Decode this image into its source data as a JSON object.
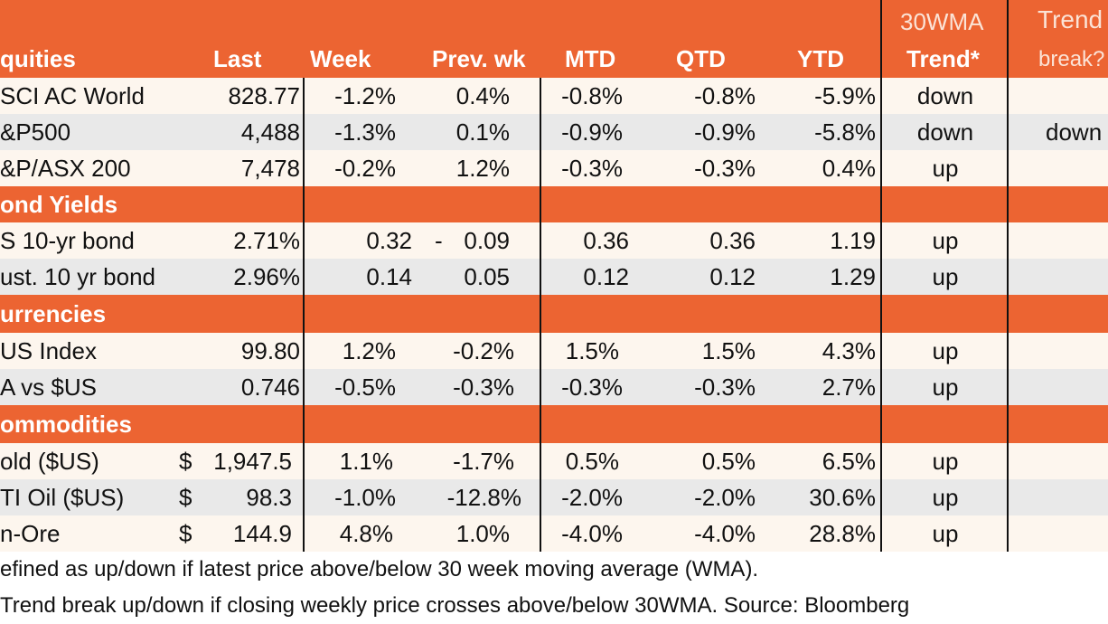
{
  "headers": {
    "name": "quities",
    "last": "Last",
    "week": "Week",
    "prev_wk": "Prev. wk",
    "mtd": "MTD",
    "qtd": "QTD",
    "ytd": "YTD",
    "wma_line1": "30WMA",
    "wma_line2": "Trend*",
    "break_line1": "Trend",
    "break_line2": "break?"
  },
  "sections": {
    "bond": "ond Yields",
    "curr": "urrencies",
    "comm": "ommodities"
  },
  "rows": [
    {
      "name": "SCI AC World",
      "dollar": "",
      "last": "828.77",
      "week": "-1.2%",
      "prev": "0.4%",
      "dash": "",
      "mtd": "-0.8%",
      "qtd": "-0.8%",
      "ytd": "-5.9%",
      "trend": "down",
      "brk": ""
    },
    {
      "name": "&P500",
      "dollar": "",
      "last": "4,488",
      "week": "-1.3%",
      "prev": "0.1%",
      "dash": "",
      "mtd": "-0.9%",
      "qtd": "-0.9%",
      "ytd": "-5.8%",
      "trend": "down",
      "brk": "down"
    },
    {
      "name": "&P/ASX 200",
      "dollar": "",
      "last": "7,478",
      "week": "-0.2%",
      "prev": "1.2%",
      "dash": "",
      "mtd": "-0.3%",
      "qtd": "-0.3%",
      "ytd": "0.4%",
      "trend": "up",
      "brk": ""
    },
    {
      "name": "S 10-yr bond",
      "dollar": "",
      "last": "2.71%",
      "week": "0.32",
      "prev": "0.09",
      "dash": "-",
      "mtd": "0.36",
      "qtd": "0.36",
      "ytd": "1.19",
      "trend": "up",
      "brk": ""
    },
    {
      "name": "ust. 10 yr bond",
      "dollar": "",
      "last": "2.96%",
      "week": "0.14",
      "prev": "0.05",
      "dash": "",
      "mtd": "0.12",
      "qtd": "0.12",
      "ytd": "1.29",
      "trend": "up",
      "brk": ""
    },
    {
      "name": "US Index",
      "dollar": "",
      "last": "99.80",
      "week": "1.2%",
      "prev": "-0.2%",
      "dash": "",
      "mtd": "1.5%",
      "qtd": "1.5%",
      "ytd": "4.3%",
      "trend": "up",
      "brk": ""
    },
    {
      "name": "A vs $US",
      "dollar": "",
      "last": "0.746",
      "week": "-0.5%",
      "prev": "-0.3%",
      "dash": "",
      "mtd": "-0.3%",
      "qtd": "-0.3%",
      "ytd": "2.7%",
      "trend": "up",
      "brk": ""
    },
    {
      "name": "old ($US)",
      "dollar": "$",
      "last": "1,947.5",
      "week": "1.1%",
      "prev": "-1.7%",
      "dash": "",
      "mtd": "0.5%",
      "qtd": "0.5%",
      "ytd": "6.5%",
      "trend": "up",
      "brk": ""
    },
    {
      "name": "TI Oil ($US)",
      "dollar": "$",
      "last": "98.3",
      "week": "-1.0%",
      "prev": "-12.8%",
      "dash": "",
      "mtd": "-2.0%",
      "qtd": "-2.0%",
      "ytd": "30.6%",
      "trend": "up",
      "brk": ""
    },
    {
      "name": "n-Ore",
      "dollar": "$",
      "last": "144.9",
      "week": "4.8%",
      "prev": "1.0%",
      "dash": "",
      "mtd": "-4.0%",
      "qtd": "-4.0%",
      "ytd": "28.8%",
      "trend": "up",
      "brk": ""
    }
  ],
  "footnotes": {
    "note1": "efined as up/down if latest price above/below 30 week moving average (WMA).",
    "note2": "Trend break up/down if closing weekly price crosses above/below 30WMA.  Source: Bloomberg"
  }
}
